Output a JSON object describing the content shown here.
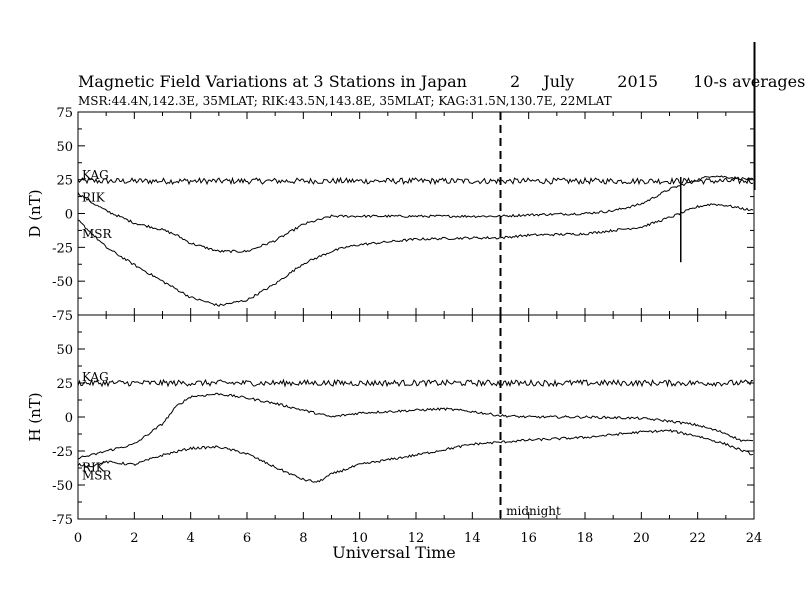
{
  "header": {
    "title_main": "Magnetic Field Variations at 3 Stations in Japan",
    "title_day": "2",
    "title_month": "July",
    "title_year": "2015",
    "title_avg": "10-s averages",
    "subtitle": "MSR:44.4N,142.3E, 35MLAT;   RIK:43.5N,143.8E, 35MLAT;   KAG:31.5N,130.7E, 22MLAT"
  },
  "chart_data": [
    {
      "type": "line",
      "panel": "D",
      "ylabel": "D (nT)",
      "ylim": [
        -75,
        75
      ],
      "yticks": [
        "75",
        "50",
        "25",
        "0",
        "-25",
        "-50",
        "-75"
      ],
      "xlim": [
        0,
        24
      ],
      "series": [
        {
          "name": "KAG",
          "color": "#000000",
          "x": [
            0,
            2,
            4,
            6,
            8,
            10,
            12,
            14,
            16,
            18,
            20,
            22,
            24
          ],
          "y": [
            24,
            24,
            24,
            24,
            24,
            24,
            24,
            24,
            24,
            24,
            24,
            24,
            24
          ]
        },
        {
          "name": "RIK",
          "color": "#000000",
          "x": [
            0,
            0.5,
            1,
            2,
            3,
            3.5,
            4,
            5,
            6,
            7,
            8,
            9,
            10,
            12,
            14,
            15,
            16,
            18,
            19,
            20,
            21,
            22,
            22.5,
            23,
            24
          ],
          "y": [
            15,
            8,
            2,
            -7,
            -12,
            -16,
            -22,
            -28,
            -28,
            -20,
            -8,
            -2,
            -2,
            -2,
            -2,
            -2,
            -1,
            0,
            2,
            7,
            18,
            25,
            28,
            27,
            25
          ]
        },
        {
          "name": "MSR",
          "color": "#000000",
          "x": [
            0,
            0.5,
            1,
            2,
            3,
            4,
            5,
            6,
            7,
            8,
            9,
            9.5,
            10,
            12,
            14,
            15,
            16,
            18,
            20,
            21,
            22,
            22.5,
            23,
            24
          ],
          "y": [
            -5,
            -15,
            -25,
            -38,
            -50,
            -62,
            -68,
            -64,
            -52,
            -37,
            -28,
            -25,
            -23,
            -19,
            -18,
            -18,
            -16,
            -15,
            -10,
            -3,
            5,
            7,
            6,
            2
          ]
        }
      ]
    },
    {
      "type": "line",
      "panel": "H",
      "ylabel": "H (nT)",
      "xlabel": "Universal Time",
      "ylim": [
        -75,
        75
      ],
      "yticks": [
        "75",
        "50",
        "25",
        "0",
        "-25",
        "-50",
        "-75"
      ],
      "xlim": [
        0,
        24
      ],
      "xticks": [
        "0",
        "2",
        "4",
        "6",
        "8",
        "10",
        "12",
        "14",
        "16",
        "18",
        "20",
        "22",
        "24"
      ],
      "series": [
        {
          "name": "KAG",
          "color": "#000000",
          "x": [
            0,
            2,
            4,
            6,
            8,
            10,
            12,
            14,
            16,
            18,
            20,
            22,
            24
          ],
          "y": [
            25,
            25,
            25,
            25,
            25,
            25,
            25,
            25,
            25,
            25,
            25,
            25,
            25
          ]
        },
        {
          "name": "RIK",
          "color": "#000000",
          "x": [
            0,
            0.5,
            1,
            2,
            3,
            3.5,
            4,
            5,
            6,
            7,
            8,
            9,
            10,
            12,
            13,
            14,
            15,
            16,
            18,
            20,
            21,
            22,
            23,
            23.5,
            24
          ],
          "y": [
            -30,
            -28,
            -25,
            -20,
            -5,
            8,
            15,
            17,
            14,
            10,
            5,
            0,
            3,
            5,
            6,
            4,
            1,
            0,
            0,
            -1,
            -3,
            -6,
            -12,
            -17,
            -18
          ]
        },
        {
          "name": "MSR",
          "color": "#000000",
          "x": [
            0,
            0.5,
            1,
            2,
            3,
            4,
            5,
            6,
            7,
            8,
            8.5,
            9,
            10,
            12,
            14,
            16,
            18,
            20,
            21,
            22,
            23,
            24
          ],
          "y": [
            -35,
            -36,
            -33,
            -35,
            -28,
            -23,
            -22,
            -27,
            -37,
            -46,
            -48,
            -42,
            -35,
            -28,
            -20,
            -17,
            -15,
            -11,
            -10,
            -14,
            -20,
            -28
          ]
        }
      ]
    }
  ],
  "annotations": {
    "midnight_label": "midnight",
    "midnight_x": 15
  }
}
